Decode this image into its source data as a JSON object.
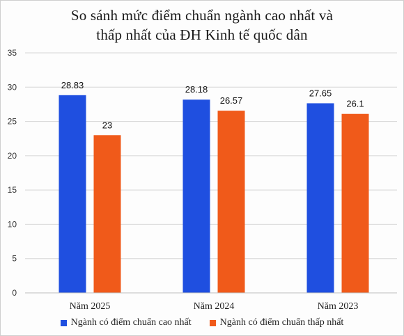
{
  "title_line1": "So sánh mức điểm chuẩn ngành cao nhất và",
  "title_line2": "thấp nhất của ĐH Kinh tế quốc dân",
  "chart_data": {
    "type": "bar",
    "categories": [
      "Năm 2025",
      "Năm 2024",
      "Năm 2023"
    ],
    "series": [
      {
        "name": "Ngành có điểm chuẩn cao nhất",
        "values": [
          28.83,
          28.18,
          27.65
        ],
        "labels": [
          "28.83",
          "28.18",
          "27.65"
        ],
        "color": "#1f4fe0"
      },
      {
        "name": "Ngành có điểm chuẩn thấp nhất",
        "values": [
          23,
          26.57,
          26.1
        ],
        "labels": [
          "23",
          "26.57",
          "26.1"
        ],
        "color": "#f05a1a"
      }
    ],
    "ylim": [
      0,
      35
    ],
    "yticks": [
      "0",
      "5",
      "10",
      "15",
      "20",
      "25",
      "30",
      "35"
    ],
    "grid": true,
    "legend": "bottom"
  }
}
